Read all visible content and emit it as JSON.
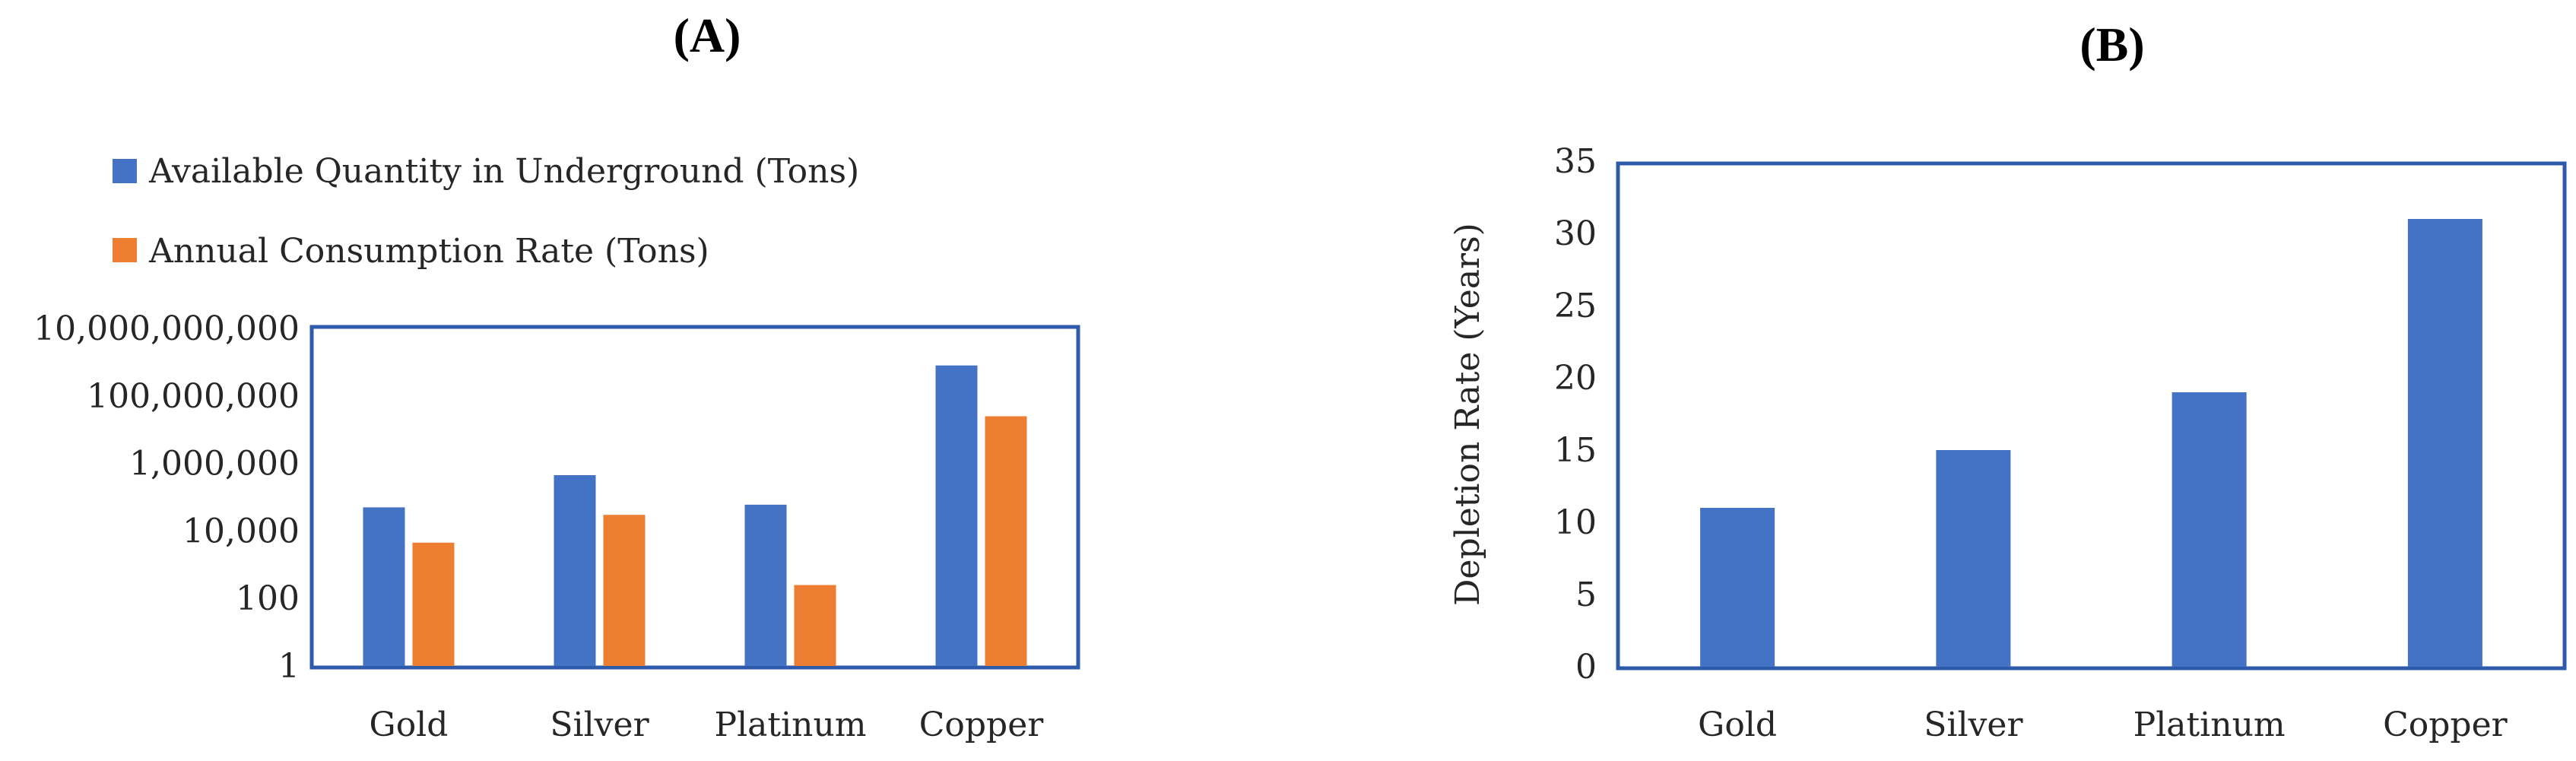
{
  "colors": {
    "series_blue": "#4472C4",
    "series_orange": "#ED7D31",
    "frame": "#2E5AAC"
  },
  "chart_data": [
    {
      "type": "bar",
      "title": "(A)",
      "categories": [
        "Gold",
        "Silver",
        "Platinum",
        "Copper"
      ],
      "series": [
        {
          "name": "Available Quantity in Underground (Tons)",
          "color": "#4472C4",
          "values": [
            50000,
            450000,
            60000,
            800000000
          ]
        },
        {
          "name": "Annual Consumption Rate (Tons)",
          "color": "#ED7D31",
          "values": [
            4500,
            30000,
            250,
            25000000
          ]
        }
      ],
      "yscale": "log",
      "ylim": [
        1,
        10000000000
      ],
      "yticks": [
        1,
        100,
        10000,
        1000000,
        100000000,
        10000000000
      ],
      "ytick_labels": [
        "1",
        "100",
        "10,000",
        "1,000,000",
        "100,000,000",
        "10,000,000,000"
      ],
      "xlabel": "",
      "ylabel": "",
      "legend": "top-left"
    },
    {
      "type": "bar",
      "title": "(B)",
      "categories": [
        "Gold",
        "Silver",
        "Platinum",
        "Copper"
      ],
      "series": [
        {
          "color": "#4472C4",
          "values": [
            11,
            15,
            19,
            31
          ]
        }
      ],
      "yscale": "linear",
      "ylim": [
        0,
        35
      ],
      "yticks": [
        0,
        5,
        10,
        15,
        20,
        25,
        30,
        35
      ],
      "ytick_labels": [
        "0",
        "5",
        "10",
        "15",
        "20",
        "25",
        "30",
        "35"
      ],
      "xlabel": "",
      "ylabel": "Depletion Rate (Years)"
    }
  ]
}
